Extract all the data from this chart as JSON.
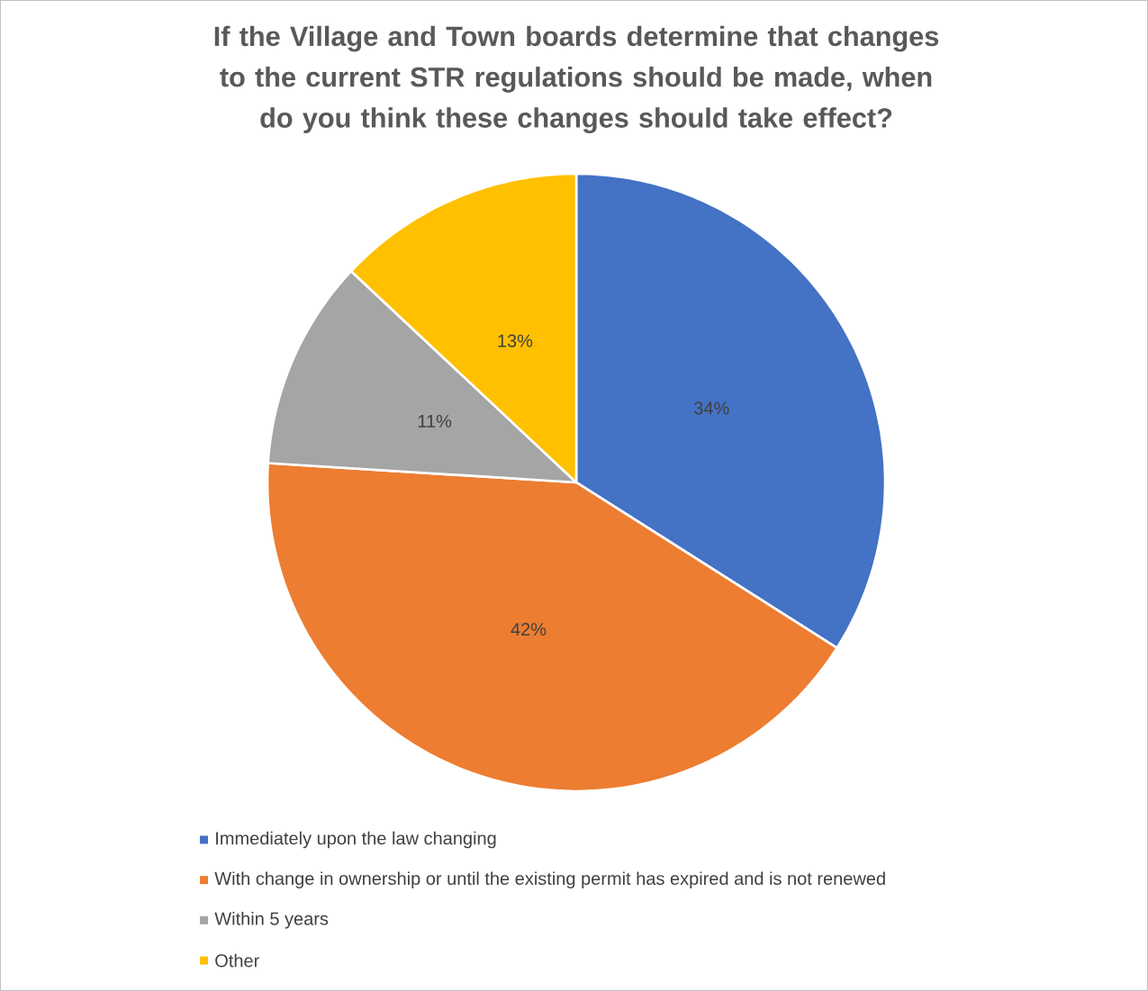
{
  "chart_data": {
    "type": "pie",
    "title": "If the Village and Town boards determine that changes to the current STR regulations should be made, when do you think these changes should take effect?",
    "categories": [
      "Immediately upon the law changing",
      "With change in ownership or until the existing permit has expired and is not renewed",
      "Within 5 years",
      "Other"
    ],
    "values": [
      34,
      42,
      11,
      13
    ],
    "colors": [
      "#4472c4",
      "#ed7d31",
      "#a5a5a5",
      "#ffc000"
    ],
    "value_labels": [
      "34%",
      "42%",
      "11%",
      "13%"
    ],
    "legend": "bottom"
  }
}
